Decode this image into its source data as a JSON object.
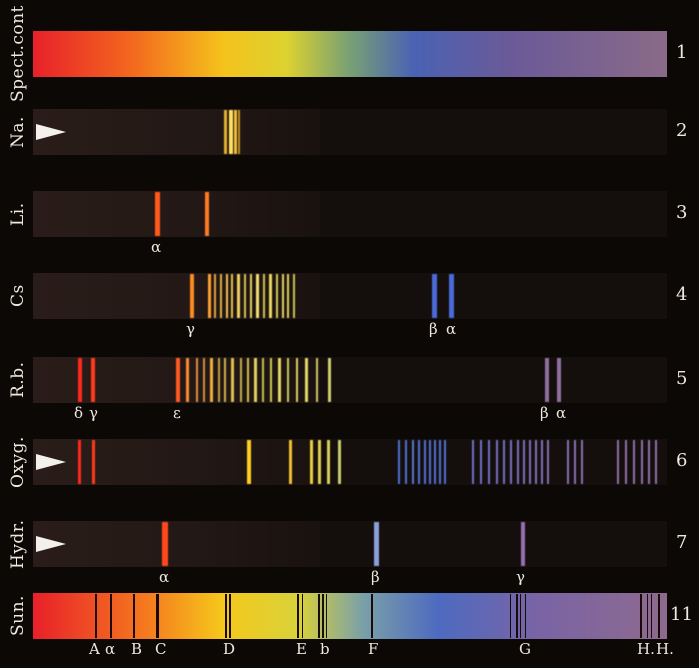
{
  "rows": [
    {
      "id": "spect-cont",
      "label": "Spect.cont",
      "num": "1",
      "type": "continuous",
      "pointer": false,
      "letters": [],
      "lines": []
    },
    {
      "id": "na",
      "label": "Na.",
      "num": "2",
      "type": "emission",
      "pointer": true,
      "letters": [],
      "lines": [
        {
          "x": 224,
          "w": 3,
          "c": "#e8b030"
        },
        {
          "x": 229,
          "w": 4,
          "c": "#ffe060"
        },
        {
          "x": 234,
          "w": 3,
          "c": "#f0c040"
        },
        {
          "x": 238,
          "w": 2,
          "c": "#c89020"
        }
      ]
    },
    {
      "id": "li",
      "label": "Li.",
      "num": "3",
      "type": "emission",
      "pointer": false,
      "letters": [
        {
          "t": "α",
          "x": 151
        }
      ],
      "lines": [
        {
          "x": 155,
          "w": 5,
          "c": "#ff5a1e"
        },
        {
          "x": 205,
          "w": 4,
          "c": "#ff7a28"
        }
      ]
    },
    {
      "id": "cs",
      "label": "Cs",
      "num": "4",
      "type": "emission",
      "pointer": false,
      "letters": [
        {
          "t": "γ",
          "x": 186
        },
        {
          "t": "β",
          "x": 429
        },
        {
          "t": "α",
          "x": 446
        }
      ],
      "lines": [
        {
          "x": 190,
          "w": 4,
          "c": "#ff8a20"
        },
        {
          "x": 208,
          "w": 3,
          "c": "#ffa030"
        },
        {
          "x": 214,
          "w": 2,
          "c": "#e0a040"
        },
        {
          "x": 220,
          "w": 2,
          "c": "#e0b040"
        },
        {
          "x": 226,
          "w": 2,
          "c": "#f0c050"
        },
        {
          "x": 231,
          "w": 2,
          "c": "#e0c050"
        },
        {
          "x": 237,
          "w": 3,
          "c": "#f0d060"
        },
        {
          "x": 244,
          "w": 2,
          "c": "#d0c050"
        },
        {
          "x": 250,
          "w": 2,
          "c": "#e0d060"
        },
        {
          "x": 256,
          "w": 3,
          "c": "#f0e070"
        },
        {
          "x": 263,
          "w": 2,
          "c": "#d0c050"
        },
        {
          "x": 269,
          "w": 3,
          "c": "#e8d860"
        },
        {
          "x": 276,
          "w": 2,
          "c": "#d0c850"
        },
        {
          "x": 282,
          "w": 2,
          "c": "#e0d060"
        },
        {
          "x": 287,
          "w": 2,
          "c": "#d8d060"
        },
        {
          "x": 293,
          "w": 2,
          "c": "#c8c050"
        },
        {
          "x": 432,
          "w": 5,
          "c": "#4a6ad8"
        },
        {
          "x": 449,
          "w": 5,
          "c": "#4a6ad8"
        }
      ]
    },
    {
      "id": "rb",
      "label": "R.b.",
      "num": "5",
      "type": "emission",
      "pointer": false,
      "letters": [
        {
          "t": "δ",
          "x": 74
        },
        {
          "t": "γ",
          "x": 89
        },
        {
          "t": "ε",
          "x": 173
        },
        {
          "t": "β",
          "x": 540
        },
        {
          "t": "α",
          "x": 556
        }
      ],
      "lines": [
        {
          "x": 78,
          "w": 4,
          "c": "#ff2a1a"
        },
        {
          "x": 91,
          "w": 4,
          "c": "#ff3a1a"
        },
        {
          "x": 176,
          "w": 4,
          "c": "#ff5a20"
        },
        {
          "x": 186,
          "w": 3,
          "c": "#ff8a30"
        },
        {
          "x": 196,
          "w": 2,
          "c": "#e09040"
        },
        {
          "x": 203,
          "w": 2,
          "c": "#d09040"
        },
        {
          "x": 210,
          "w": 3,
          "c": "#f0b040"
        },
        {
          "x": 218,
          "w": 2,
          "c": "#c0a040"
        },
        {
          "x": 224,
          "w": 2,
          "c": "#d0b050"
        },
        {
          "x": 231,
          "w": 3,
          "c": "#e0c050"
        },
        {
          "x": 240,
          "w": 2,
          "c": "#c0b050"
        },
        {
          "x": 247,
          "w": 2,
          "c": "#d0c050"
        },
        {
          "x": 254,
          "w": 3,
          "c": "#e0d060"
        },
        {
          "x": 262,
          "w": 2,
          "c": "#c8c050"
        },
        {
          "x": 270,
          "w": 2,
          "c": "#d0c850"
        },
        {
          "x": 278,
          "w": 3,
          "c": "#e0d860"
        },
        {
          "x": 287,
          "w": 2,
          "c": "#c8c858"
        },
        {
          "x": 296,
          "w": 2,
          "c": "#d8d060"
        },
        {
          "x": 305,
          "w": 3,
          "c": "#e0d868"
        },
        {
          "x": 316,
          "w": 2,
          "c": "#c8c860"
        },
        {
          "x": 328,
          "w": 3,
          "c": "#d0d070"
        },
        {
          "x": 545,
          "w": 4,
          "c": "#9070a0"
        },
        {
          "x": 557,
          "w": 4,
          "c": "#9070a0"
        }
      ]
    },
    {
      "id": "oxyg",
      "label": "Oxyg.",
      "num": "6",
      "type": "emission",
      "pointer": true,
      "letters": [],
      "lines": [
        {
          "x": 78,
          "w": 3,
          "c": "#ff2a1a"
        },
        {
          "x": 92,
          "w": 3,
          "c": "#ff3a1a"
        },
        {
          "x": 247,
          "w": 4,
          "c": "#ffd020"
        },
        {
          "x": 289,
          "w": 3,
          "c": "#f0c030"
        },
        {
          "x": 310,
          "w": 3,
          "c": "#e8d040"
        },
        {
          "x": 318,
          "w": 3,
          "c": "#e0d050"
        },
        {
          "x": 327,
          "w": 3,
          "c": "#d8d060"
        },
        {
          "x": 338,
          "w": 3,
          "c": "#c8d070"
        },
        {
          "x": 398,
          "w": 2,
          "c": "#5070d0"
        },
        {
          "x": 405,
          "w": 2,
          "c": "#5070d0"
        },
        {
          "x": 412,
          "w": 2,
          "c": "#5578d0"
        },
        {
          "x": 418,
          "w": 2,
          "c": "#5070d0"
        },
        {
          "x": 424,
          "w": 2,
          "c": "#5070d0"
        },
        {
          "x": 429,
          "w": 2,
          "c": "#5070d0"
        },
        {
          "x": 434,
          "w": 2,
          "c": "#5070d0"
        },
        {
          "x": 439,
          "w": 2,
          "c": "#5070d0"
        },
        {
          "x": 444,
          "w": 2,
          "c": "#5070d0"
        },
        {
          "x": 472,
          "w": 2,
          "c": "#7070c8"
        },
        {
          "x": 480,
          "w": 2,
          "c": "#7070c8"
        },
        {
          "x": 488,
          "w": 2,
          "c": "#7070c8"
        },
        {
          "x": 496,
          "w": 2,
          "c": "#7470c0"
        },
        {
          "x": 503,
          "w": 2,
          "c": "#7470c0"
        },
        {
          "x": 510,
          "w": 2,
          "c": "#7870c0"
        },
        {
          "x": 517,
          "w": 2,
          "c": "#7870c0"
        },
        {
          "x": 523,
          "w": 2,
          "c": "#7c70b8"
        },
        {
          "x": 529,
          "w": 2,
          "c": "#7c70b8"
        },
        {
          "x": 535,
          "w": 2,
          "c": "#8070b8"
        },
        {
          "x": 541,
          "w": 2,
          "c": "#8070b8"
        },
        {
          "x": 547,
          "w": 2,
          "c": "#8470b0"
        },
        {
          "x": 567,
          "w": 2,
          "c": "#8870b0"
        },
        {
          "x": 574,
          "w": 2,
          "c": "#8870b0"
        },
        {
          "x": 581,
          "w": 2,
          "c": "#8870b0"
        },
        {
          "x": 617,
          "w": 2,
          "c": "#9070a8"
        },
        {
          "x": 625,
          "w": 2,
          "c": "#9070a8"
        },
        {
          "x": 633,
          "w": 2,
          "c": "#9070a8"
        },
        {
          "x": 641,
          "w": 2,
          "c": "#9070a8"
        },
        {
          "x": 648,
          "w": 2,
          "c": "#9070a8"
        },
        {
          "x": 655,
          "w": 2,
          "c": "#9070a8"
        }
      ]
    },
    {
      "id": "hydr",
      "label": "Hydr.",
      "num": "7",
      "type": "emission",
      "pointer": true,
      "letters": [
        {
          "t": "α",
          "x": 159
        },
        {
          "t": "β",
          "x": 371
        },
        {
          "t": "γ",
          "x": 516
        }
      ],
      "lines": [
        {
          "x": 162,
          "w": 6,
          "c": "#ff4a1a"
        },
        {
          "x": 374,
          "w": 5,
          "c": "#8aa0d8"
        },
        {
          "x": 521,
          "w": 4,
          "c": "#9870b0"
        }
      ]
    },
    {
      "id": "sun",
      "label": "Sun.",
      "num": "11",
      "type": "solar",
      "pointer": false,
      "letters": [
        {
          "t": "A",
          "x": 89
        },
        {
          "t": "α",
          "x": 105
        },
        {
          "t": "B",
          "x": 131
        },
        {
          "t": "C",
          "x": 155
        },
        {
          "t": "D",
          "x": 223
        },
        {
          "t": "E",
          "x": 296
        },
        {
          "t": "b",
          "x": 320
        },
        {
          "t": "F",
          "x": 368
        },
        {
          "t": "G",
          "x": 519
        },
        {
          "t": "H.",
          "x": 637
        },
        {
          "t": "H.",
          "x": 656
        }
      ],
      "lines": [
        {
          "x": 95,
          "w": 2,
          "c": "#1a0a08"
        },
        {
          "x": 110,
          "w": 2,
          "c": "#1a0a08"
        },
        {
          "x": 133,
          "w": 2,
          "c": "#1a0a08"
        },
        {
          "x": 156,
          "w": 3,
          "c": "#1a0a08"
        },
        {
          "x": 225,
          "w": 2,
          "c": "#1a0a08"
        },
        {
          "x": 229,
          "w": 2,
          "c": "#1a0a08"
        },
        {
          "x": 297,
          "w": 2,
          "c": "#1a0a08"
        },
        {
          "x": 302,
          "w": 1,
          "c": "#1a0a08"
        },
        {
          "x": 318,
          "w": 2,
          "c": "#1a0a08"
        },
        {
          "x": 322,
          "w": 2,
          "c": "#1a0a08"
        },
        {
          "x": 326,
          "w": 1,
          "c": "#1a0a08"
        },
        {
          "x": 371,
          "w": 2,
          "c": "#1a0a08"
        },
        {
          "x": 510,
          "w": 1,
          "c": "#1a0a08"
        },
        {
          "x": 516,
          "w": 2,
          "c": "#1a0a08"
        },
        {
          "x": 520,
          "w": 1,
          "c": "#1a0a08"
        },
        {
          "x": 525,
          "w": 1,
          "c": "#1a0a08"
        },
        {
          "x": 640,
          "w": 2,
          "c": "#1a0a08"
        },
        {
          "x": 647,
          "w": 1,
          "c": "#1a0a08"
        },
        {
          "x": 651,
          "w": 1,
          "c": "#1a0a08"
        },
        {
          "x": 658,
          "w": 2,
          "c": "#1a0a08"
        }
      ]
    }
  ]
}
